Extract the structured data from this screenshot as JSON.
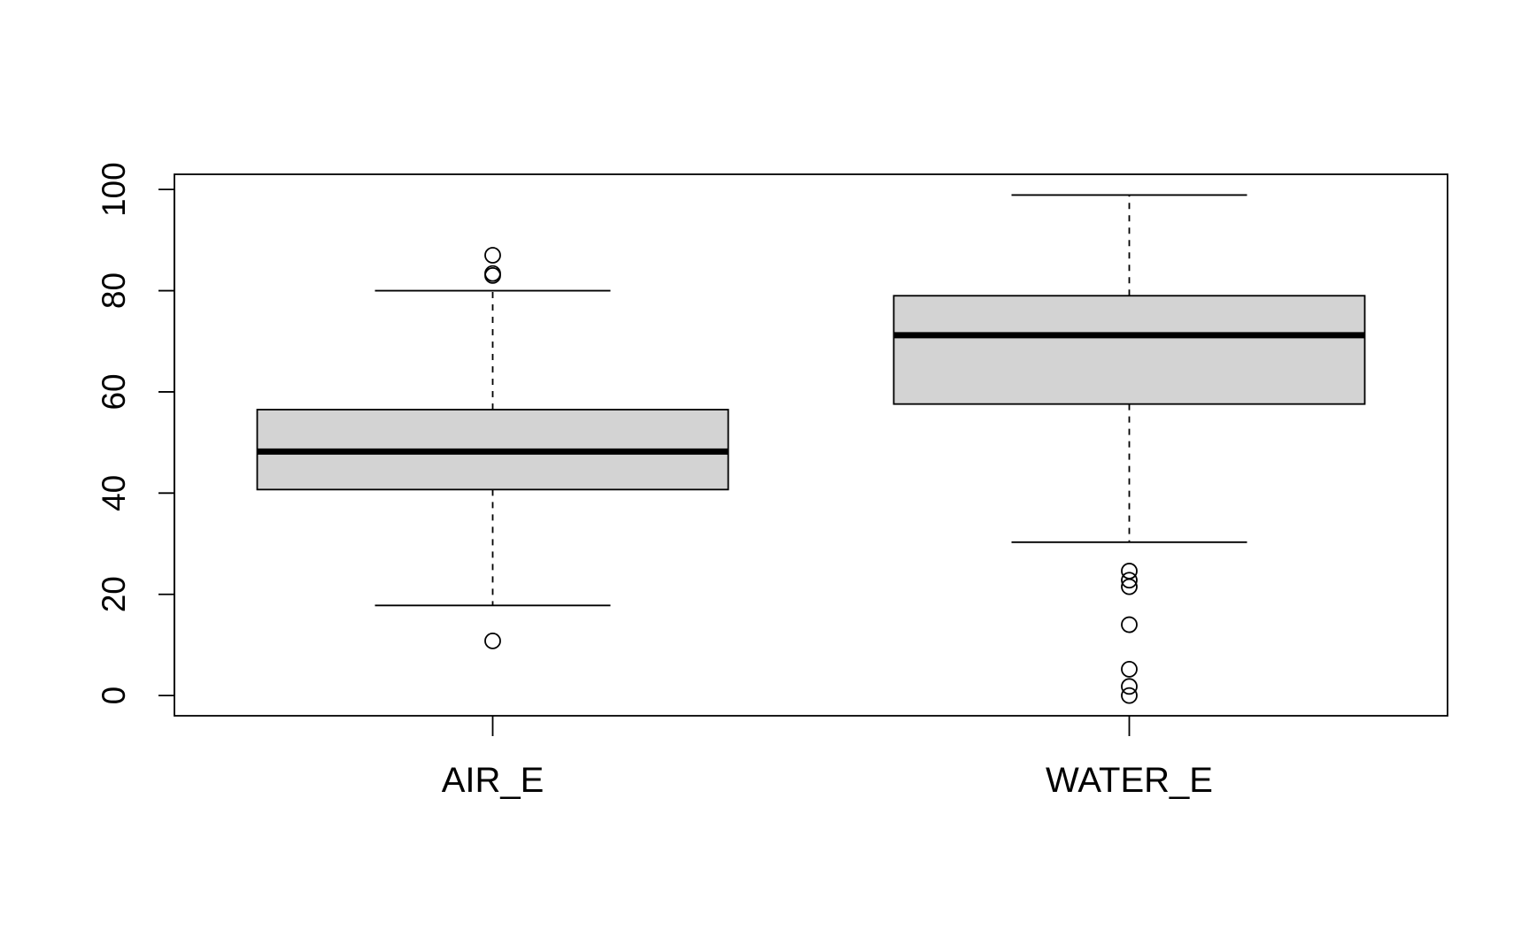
{
  "chart_data": {
    "type": "boxplot",
    "title": "",
    "xlabel": "",
    "ylabel": "",
    "ylim": [
      -4,
      103
    ],
    "y_ticks": [
      0,
      20,
      40,
      60,
      80,
      100
    ],
    "y_tick_labels": [
      "0",
      "20",
      "40",
      "60",
      "80",
      "100"
    ],
    "categories": [
      "AIR_E",
      "WATER_E"
    ],
    "boxes": [
      {
        "category": "AIR_E",
        "whisker_low": 17.8,
        "q1": 40.7,
        "median": 48.2,
        "q3": 56.5,
        "whisker_high": 80.0,
        "outliers": [
          10.8,
          83.0,
          83.4,
          87.0
        ]
      },
      {
        "category": "WATER_E",
        "whisker_low": 30.3,
        "q1": 57.6,
        "median": 71.2,
        "q3": 79.0,
        "whisker_high": 98.9,
        "outliers": [
          0.0,
          1.8,
          5.2,
          14.0,
          21.5,
          22.8,
          24.6
        ]
      }
    ],
    "box_fill": "#d3d3d3",
    "line_color": "#000000",
    "grid": false
  }
}
